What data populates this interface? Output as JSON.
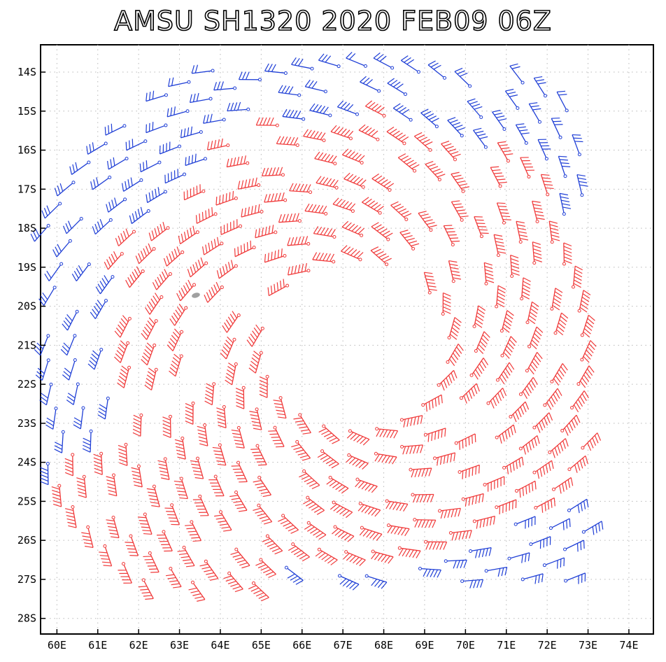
{
  "title": "AMSU SH1320 2020 FEB09 06Z",
  "map": {
    "lon_range": [
      59.6,
      74.6
    ],
    "lat_range": [
      -28.4,
      -13.3
    ],
    "lon_ticks": [
      60,
      61,
      62,
      63,
      64,
      65,
      66,
      67,
      68,
      69,
      70,
      71,
      72,
      73,
      74
    ],
    "lat_ticks": [
      -14,
      -15,
      -16,
      -17,
      -18,
      -19,
      -20,
      -21,
      -22,
      -23,
      -24,
      -25,
      -26,
      -27,
      -28
    ],
    "lon_labels": [
      "60E",
      "61E",
      "62E",
      "63E",
      "64E",
      "65E",
      "66E",
      "67E",
      "68E",
      "69E",
      "70E",
      "71E",
      "72E",
      "73E",
      "74E"
    ],
    "lat_labels": [
      "14S",
      "15S",
      "16S",
      "17S",
      "18S",
      "19S",
      "20S",
      "21S",
      "22S",
      "23S",
      "24S",
      "25S",
      "26S",
      "27S",
      "28S"
    ],
    "grid": "dotted",
    "land_patch": {
      "lon": 63.4,
      "lat": -19.72
    }
  },
  "colors": {
    "low_wind": "#1f3fd6",
    "high_wind": "#f03a3a",
    "land": "#a0a0a0",
    "grid": "#b8b8b8"
  },
  "wind_field": {
    "center": {
      "lon": 67.3,
      "lat": -21.0
    },
    "radius_deg": 8.2,
    "high_speed_threshold_kt": 50
  }
}
